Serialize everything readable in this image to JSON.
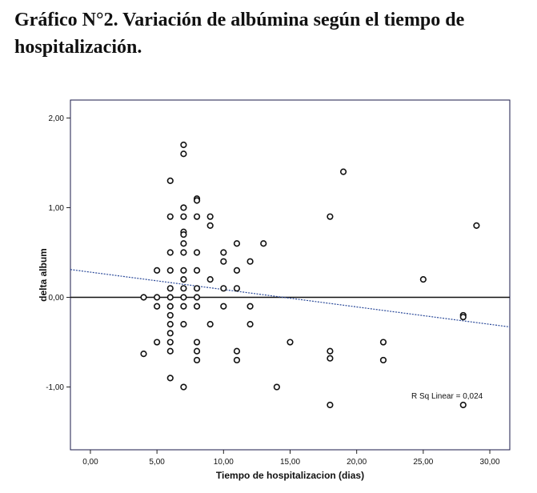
{
  "figure": {
    "title": "Gráfico N°2. Variación de albúmina según el tiempo de hospitalización."
  },
  "chart_data": {
    "type": "scatter",
    "title": "",
    "xlabel": "Tiempo de hospitalizacion (dias)",
    "ylabel": "delta album",
    "xlim": [
      -1.5,
      31.5
    ],
    "ylim": [
      -1.7,
      2.2
    ],
    "x_ticks": [
      0,
      5,
      10,
      15,
      20,
      25,
      30
    ],
    "x_tick_labels": [
      "0,00",
      "5,00",
      "10,00",
      "15,00",
      "20,00",
      "25,00",
      "30,00"
    ],
    "y_ticks": [
      2,
      1,
      0,
      -1
    ],
    "y_tick_labels": [
      "2,00",
      "1,00",
      "0,00",
      "-1,00"
    ],
    "grid": false,
    "reference_line_y": 0,
    "fit_line": {
      "type": "linear",
      "points": [
        [
          -1.5,
          0.31
        ],
        [
          31.5,
          -0.33
        ]
      ]
    },
    "annotation": "R Sq Linear = 0,024",
    "points": [
      {
        "x": 4,
        "y": 0
      },
      {
        "x": 4,
        "y": -0.63
      },
      {
        "x": 5,
        "y": 0.3
      },
      {
        "x": 5,
        "y": 0
      },
      {
        "x": 5,
        "y": -0.1
      },
      {
        "x": 5,
        "y": -0.5
      },
      {
        "x": 6,
        "y": 1.3
      },
      {
        "x": 6,
        "y": 0.9
      },
      {
        "x": 6,
        "y": 0.5
      },
      {
        "x": 6,
        "y": 0.3
      },
      {
        "x": 6,
        "y": 0.1
      },
      {
        "x": 6,
        "y": 0
      },
      {
        "x": 6,
        "y": -0.1
      },
      {
        "x": 6,
        "y": -0.2
      },
      {
        "x": 6,
        "y": -0.3
      },
      {
        "x": 6,
        "y": -0.4
      },
      {
        "x": 6,
        "y": -0.5
      },
      {
        "x": 6,
        "y": -0.6
      },
      {
        "x": 6,
        "y": -0.9
      },
      {
        "x": 7,
        "y": 1.7
      },
      {
        "x": 7,
        "y": 1.6
      },
      {
        "x": 7,
        "y": 1.0
      },
      {
        "x": 7,
        "y": 0.9
      },
      {
        "x": 7,
        "y": 0.73
      },
      {
        "x": 7,
        "y": 0.7
      },
      {
        "x": 7,
        "y": 0.6
      },
      {
        "x": 7,
        "y": 0.5
      },
      {
        "x": 7,
        "y": 0.3
      },
      {
        "x": 7,
        "y": 0.2
      },
      {
        "x": 7,
        "y": 0.1
      },
      {
        "x": 7,
        "y": 0
      },
      {
        "x": 7,
        "y": -0.1
      },
      {
        "x": 7,
        "y": -0.3
      },
      {
        "x": 7,
        "y": -1.0
      },
      {
        "x": 8,
        "y": 1.1
      },
      {
        "x": 8,
        "y": 1.08
      },
      {
        "x": 8,
        "y": 0.9
      },
      {
        "x": 8,
        "y": 0.5
      },
      {
        "x": 8,
        "y": 0.3
      },
      {
        "x": 8,
        "y": 0.1
      },
      {
        "x": 8,
        "y": 0
      },
      {
        "x": 8,
        "y": -0.1
      },
      {
        "x": 8,
        "y": -0.5
      },
      {
        "x": 8,
        "y": -0.6
      },
      {
        "x": 8,
        "y": -0.7
      },
      {
        "x": 9,
        "y": 0.9
      },
      {
        "x": 9,
        "y": 0.8
      },
      {
        "x": 9,
        "y": 0.2
      },
      {
        "x": 9,
        "y": -0.3
      },
      {
        "x": 10,
        "y": 0.5
      },
      {
        "x": 10,
        "y": 0.4
      },
      {
        "x": 10,
        "y": 0.1
      },
      {
        "x": 10,
        "y": -0.1
      },
      {
        "x": 11,
        "y": 0.6
      },
      {
        "x": 11,
        "y": 0.3
      },
      {
        "x": 11,
        "y": 0.1
      },
      {
        "x": 11,
        "y": -0.6
      },
      {
        "x": 11,
        "y": -0.7
      },
      {
        "x": 12,
        "y": 0.4
      },
      {
        "x": 12,
        "y": -0.1
      },
      {
        "x": 12,
        "y": -0.3
      },
      {
        "x": 13,
        "y": 0.6
      },
      {
        "x": 14,
        "y": -1.0
      },
      {
        "x": 15,
        "y": -0.5
      },
      {
        "x": 18,
        "y": 0.9
      },
      {
        "x": 18,
        "y": -0.6
      },
      {
        "x": 18,
        "y": -0.68
      },
      {
        "x": 18,
        "y": -1.2
      },
      {
        "x": 19,
        "y": 1.4
      },
      {
        "x": 22,
        "y": -0.5
      },
      {
        "x": 22,
        "y": -0.7
      },
      {
        "x": 25,
        "y": 0.2
      },
      {
        "x": 28,
        "y": -0.2
      },
      {
        "x": 28,
        "y": -0.22
      },
      {
        "x": 28,
        "y": -1.2
      },
      {
        "x": 29,
        "y": 0.8
      }
    ]
  }
}
